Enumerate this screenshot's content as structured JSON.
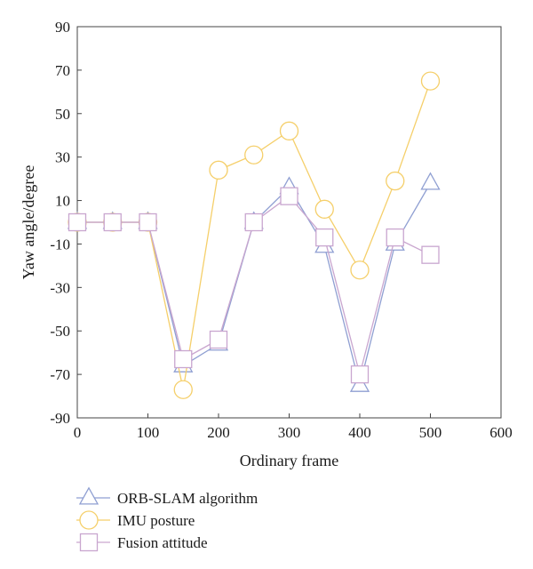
{
  "chart_data": {
    "type": "line",
    "xlabel": "Ordinary frame",
    "ylabel": "Yaw angle/degree",
    "xlim": [
      0,
      600
    ],
    "ylim": [
      -90,
      90
    ],
    "xticks": [
      0,
      100,
      200,
      300,
      400,
      500,
      600
    ],
    "yticks": [
      -90,
      -70,
      -50,
      -30,
      -10,
      10,
      30,
      50,
      70,
      90
    ],
    "grid": false,
    "legend_position": "bottom-left",
    "series": [
      {
        "name": "ORB-SLAM algorithm",
        "marker": "triangle",
        "color": "#8f9fd2",
        "x": [
          0,
          50,
          100,
          150,
          200,
          250,
          300,
          350,
          400,
          450,
          500
        ],
        "y": [
          0,
          0,
          0,
          -66,
          -56,
          0,
          16,
          -11,
          -75,
          -10,
          18
        ]
      },
      {
        "name": "IMU posture",
        "marker": "circle",
        "color": "#f5cf6a",
        "x": [
          0,
          50,
          100,
          150,
          200,
          250,
          300,
          350,
          400,
          450,
          500
        ],
        "y": [
          0,
          0,
          0,
          -77,
          24,
          31,
          42,
          6,
          -22,
          19,
          65
        ]
      },
      {
        "name": "Fusion attitude",
        "marker": "square",
        "color": "#c9a6cf",
        "x": [
          0,
          50,
          100,
          150,
          200,
          250,
          300,
          350,
          400,
          450,
          500
        ],
        "y": [
          0,
          0,
          0,
          -63,
          -54,
          0,
          12,
          -7,
          -70,
          -7,
          -15
        ]
      }
    ]
  }
}
